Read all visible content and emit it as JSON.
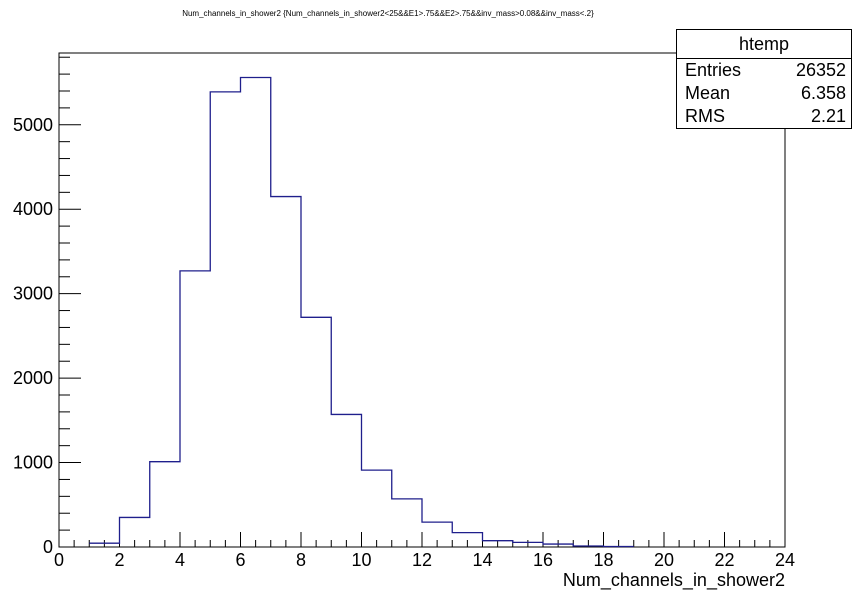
{
  "chart_data": {
    "type": "bar",
    "title": "Num_channels_in_shower2 {Num_channels_in_shower2<25&&E1>.75&&E2>.75&&inv_mass>0.08&&inv_mass<.2}",
    "xlabel": "Num_channels_in_shower2",
    "ylabel": "",
    "xlim": [
      0,
      24
    ],
    "ylim": [
      0,
      5850
    ],
    "x_ticks": [
      0,
      2,
      4,
      6,
      8,
      10,
      12,
      14,
      16,
      18,
      20,
      22,
      24
    ],
    "y_ticks": [
      0,
      1000,
      2000,
      3000,
      4000,
      5000
    ],
    "bin_edges": [
      1,
      2,
      3,
      4,
      5,
      6,
      7,
      8,
      9,
      10,
      11,
      12,
      13,
      14,
      15,
      16,
      17,
      18,
      19
    ],
    "values": [
      45,
      350,
      1010,
      3270,
      5390,
      5560,
      4150,
      2720,
      1570,
      910,
      570,
      295,
      170,
      75,
      55,
      35,
      12,
      6
    ],
    "line_color": "#1f1f8c",
    "grid": false
  },
  "stats": {
    "title": "htemp",
    "rows": [
      {
        "label": "Entries",
        "value": "26352"
      },
      {
        "label": "Mean",
        "value": "6.358"
      },
      {
        "label": "RMS",
        "value": "2.21"
      }
    ]
  }
}
